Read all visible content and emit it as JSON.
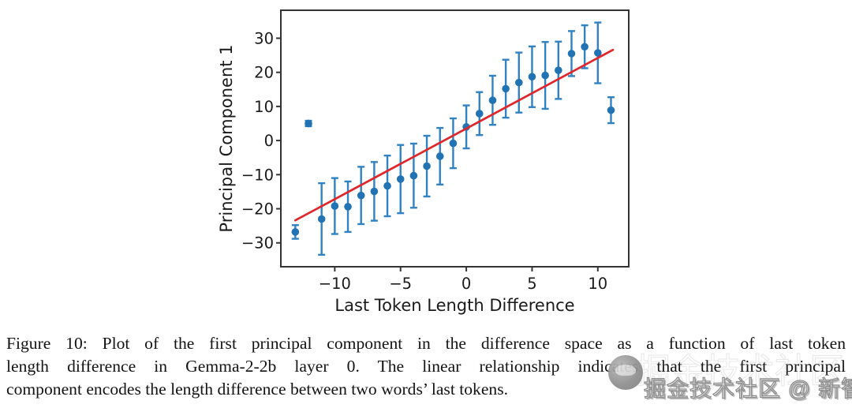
{
  "figure": {
    "caption_lines": [
      "Figure 10:  Plot of the first principal component in the difference space as a function of last token",
      "length difference in Gemma-2-2b layer 0.  The linear relationship indicates that the first principal",
      "component encodes the length difference between two words’ last tokens."
    ]
  },
  "watermark": {
    "text": "掘金技术社区 @ 新智元",
    "logo": "gray-circle-logo",
    "color": "#8e8e8e"
  },
  "chart_data": {
    "type": "scatter",
    "title": "",
    "xlabel": "Last Token Length Difference",
    "ylabel": "Principal Component 1",
    "xlim": [
      -14.1,
      12.35
    ],
    "ylim": [
      -37.0,
      38.2
    ],
    "xticks": [
      -10,
      -5,
      0,
      5,
      10
    ],
    "yticks": [
      -30,
      -20,
      -10,
      0,
      10,
      20,
      30
    ],
    "grid": false,
    "legend": "none",
    "points": [
      {
        "x": -13,
        "y": -26.8,
        "err": 2.0
      },
      {
        "x": -12,
        "y": 5.0,
        "err": 0.8
      },
      {
        "x": -11,
        "y": -23.0,
        "err": 10.5
      },
      {
        "x": -10,
        "y": -19.2,
        "err": 8.2
      },
      {
        "x": -9,
        "y": -19.4,
        "err": 7.4
      },
      {
        "x": -8,
        "y": -16.1,
        "err": 8.4
      },
      {
        "x": -7,
        "y": -14.9,
        "err": 8.6
      },
      {
        "x": -6,
        "y": -13.3,
        "err": 8.9
      },
      {
        "x": -5,
        "y": -11.3,
        "err": 10.0
      },
      {
        "x": -4,
        "y": -10.3,
        "err": 9.4
      },
      {
        "x": -3,
        "y": -7.5,
        "err": 8.9
      },
      {
        "x": -2,
        "y": -4.6,
        "err": 8.3
      },
      {
        "x": -1,
        "y": -0.8,
        "err": 7.3
      },
      {
        "x": 0,
        "y": 4.0,
        "err": 6.3
      },
      {
        "x": 1,
        "y": 7.9,
        "err": 6.3
      },
      {
        "x": 2,
        "y": 11.8,
        "err": 7.2
      },
      {
        "x": 3,
        "y": 15.2,
        "err": 8.5
      },
      {
        "x": 4,
        "y": 17.0,
        "err": 8.8
      },
      {
        "x": 5,
        "y": 18.7,
        "err": 8.9
      },
      {
        "x": 6,
        "y": 19.1,
        "err": 9.8
      },
      {
        "x": 7,
        "y": 20.6,
        "err": 8.4
      },
      {
        "x": 8,
        "y": 25.5,
        "err": 6.6
      },
      {
        "x": 9,
        "y": 27.5,
        "err": 6.3
      },
      {
        "x": 10,
        "y": 25.7,
        "err": 8.9
      },
      {
        "x": 11,
        "y": 8.9,
        "err": 3.8
      }
    ],
    "trend_line": {
      "x1": -13.0,
      "y1": -23.4,
      "x2": 11.15,
      "y2": 26.6
    },
    "colors": {
      "marker": "#2173b4",
      "errorbar": "#3182c3",
      "trend": "#e0262b",
      "axis": "#333333",
      "text": "#1a1a1a"
    }
  }
}
